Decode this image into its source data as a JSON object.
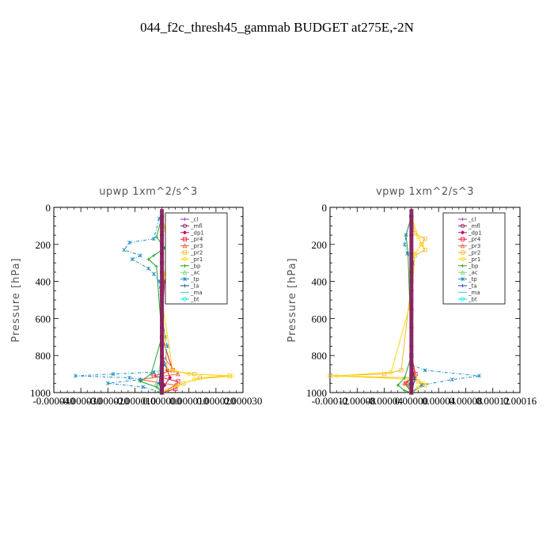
{
  "figure": {
    "title": "044_f2c_thresh45_gammab  BUDGET at275E,-2N"
  },
  "colors": {
    "cl": "#9b2fae",
    "mfl": "#8a1a5b",
    "dp1": "#c0106a",
    "pr4": "#e8123a",
    "pr3": "#ef5d3a",
    "pr2": "#f5b82e",
    "pr1": "#ffd700",
    "bp": "#1fa32b",
    "ac": "#7cd27c",
    "tp": "#1b8fc4",
    "ta": "#1f3f9f",
    "ma": "#4ec4d6",
    "bt": "#00e5e5"
  },
  "chart_data": [
    {
      "type": "line",
      "title": "upwp   1xm^2/s^3",
      "ylabel": "Pressure  [hPa]",
      "xlabel": "",
      "xlim": [
        -4e-05,
        3e-05
      ],
      "ylim": [
        1000,
        0
      ],
      "x_ticks": [
        -4e-05,
        -3e-05,
        -2e-05,
        -1e-05,
        0,
        1e-05,
        2e-05,
        3e-05
      ],
      "x_tick_labels": [
        "-0.000040",
        "-0.000030",
        "-0.000020",
        "-0.000010",
        "0.000000",
        "0.000010",
        "0.000020",
        "0.000030"
      ],
      "y_ticks": [
        0,
        200,
        400,
        600,
        800,
        1000
      ],
      "y_tick_labels": [
        "0",
        "200",
        "400",
        "600",
        "800",
        "1000"
      ],
      "legend": "top-right",
      "series": [
        {
          "name": "_cl",
          "key": "cl",
          "x": [
            0,
            0,
            0,
            0,
            0,
            0,
            0,
            0,
            0,
            0,
            0,
            0
          ],
          "y": [
            50,
            150,
            250,
            350,
            450,
            550,
            650,
            750,
            850,
            900,
            950,
            1000
          ]
        },
        {
          "name": "_mfl",
          "key": "mfl",
          "x": [
            0,
            0,
            0,
            0,
            0,
            0,
            0,
            0,
            0,
            0,
            0,
            0
          ],
          "y": [
            50,
            150,
            250,
            350,
            450,
            550,
            650,
            750,
            850,
            900,
            950,
            1000
          ]
        },
        {
          "name": "_dp1",
          "key": "dp1",
          "x": [
            0,
            0,
            0,
            1e-06,
            0,
            0,
            2e-06,
            3e-06,
            1e-06,
            0
          ],
          "y": [
            50,
            200,
            300,
            400,
            600,
            800,
            880,
            920,
            960,
            1000
          ]
        },
        {
          "name": "_pr4",
          "key": "pr4",
          "x": [
            0,
            0,
            0,
            4e-06,
            -3e-06,
            6e-06,
            5e-06,
            0
          ],
          "y": [
            50,
            300,
            700,
            880,
            910,
            940,
            980,
            1000
          ]
        },
        {
          "name": "_pr3",
          "key": "pr3",
          "x": [
            0,
            0,
            0,
            6e-06,
            -8e-06,
            5e-06,
            0
          ],
          "y": [
            50,
            400,
            800,
            900,
            930,
            960,
            1000
          ]
        },
        {
          "name": "_pr2",
          "key": "pr2",
          "x": [
            0,
            1e-06,
            3e-06,
            2e-06,
            5e-06,
            4e-06,
            3e-06,
            2e-06,
            1e-06,
            0,
            1e-06,
            2e-06,
            1.2e-05,
            2.5e-05,
            1.4e-05,
            8e-06,
            0
          ],
          "y": [
            50,
            120,
            170,
            190,
            230,
            260,
            300,
            330,
            360,
            500,
            700,
            880,
            900,
            910,
            920,
            950,
            1000
          ]
        },
        {
          "name": "_pr1",
          "key": "pr1",
          "x": [
            0,
            2e-06,
            8e-06,
            3e-06,
            6e-06,
            4e-06,
            1e-06,
            0,
            4e-06,
            1e-05,
            2.6e-05,
            1.2e-05,
            6e-06,
            0
          ],
          "y": [
            50,
            150,
            190,
            210,
            250,
            300,
            350,
            500,
            880,
            900,
            910,
            930,
            960,
            1000
          ]
        },
        {
          "name": "_bp",
          "key": "bp",
          "x": [
            0,
            -2e-06,
            1e-06,
            -3e-06,
            -5e-06,
            -2e-06,
            0,
            -4e-06,
            -8e-06,
            -2e-06,
            0
          ],
          "y": [
            50,
            160,
            220,
            260,
            280,
            320,
            700,
            900,
            940,
            970,
            1000
          ]
        },
        {
          "name": "_ac",
          "key": "ac",
          "x": [
            0,
            0,
            0,
            -2e-06,
            0
          ],
          "y": [
            50,
            300,
            800,
            950,
            1000
          ]
        },
        {
          "name": "_tp",
          "key": "tp",
          "x": [
            -1e-06,
            -3e-06,
            -1.2e-05,
            -1.4e-05,
            -8e-06,
            -1.1e-05,
            -5e-06,
            -3e-06,
            -1e-06,
            0,
            2e-06,
            1e-06,
            0,
            -3e-06,
            -1.8e-05,
            -3.2e-05,
            -1.2e-05,
            -8e-06,
            -2e-05,
            -7e-06,
            0
          ],
          "y": [
            60,
            170,
            190,
            230,
            260,
            280,
            330,
            360,
            400,
            600,
            750,
            850,
            880,
            890,
            900,
            910,
            920,
            930,
            950,
            970,
            1000
          ]
        },
        {
          "name": "_ta",
          "key": "ta",
          "x": [
            0,
            0,
            0,
            -1e-06,
            0
          ],
          "y": [
            50,
            300,
            800,
            950,
            1000
          ]
        },
        {
          "name": "_ma",
          "key": "ma",
          "x": [
            0,
            0,
            0,
            0
          ],
          "y": [
            50,
            400,
            800,
            1000
          ]
        },
        {
          "name": "_bt",
          "key": "bt",
          "x": [
            0,
            0,
            0,
            0
          ],
          "y": [
            50,
            400,
            800,
            1000
          ]
        }
      ]
    },
    {
      "type": "line",
      "title": "vpwp   1xm^2/s^3",
      "ylabel": "Pressure  [hPa]",
      "xlabel": "",
      "xlim": [
        -0.00012,
        0.00016
      ],
      "ylim": [
        1000,
        0
      ],
      "x_ticks": [
        -0.00012,
        -8e-05,
        -4e-05,
        0,
        4e-05,
        8e-05,
        0.00012,
        0.00016
      ],
      "x_tick_labels": [
        "-0.00012",
        "-0.00008",
        "-0.00004",
        "0.00000",
        "0.00004",
        "0.00008",
        "0.00012",
        "0.00016"
      ],
      "y_ticks": [
        0,
        200,
        400,
        600,
        800,
        1000
      ],
      "y_tick_labels": [
        "0",
        "200",
        "400",
        "600",
        "800",
        "1000"
      ],
      "legend": "top-right",
      "series": [
        {
          "name": "_cl",
          "key": "cl",
          "x": [
            0,
            0,
            0,
            0,
            0,
            0,
            0,
            0,
            0,
            0,
            0,
            0
          ],
          "y": [
            50,
            150,
            250,
            350,
            450,
            550,
            650,
            750,
            850,
            900,
            950,
            1000
          ]
        },
        {
          "name": "_mfl",
          "key": "mfl",
          "x": [
            0,
            0,
            0,
            0,
            0,
            0,
            0,
            0,
            0,
            0,
            0,
            0
          ],
          "y": [
            50,
            150,
            250,
            350,
            450,
            550,
            650,
            750,
            850,
            900,
            950,
            1000
          ]
        },
        {
          "name": "_dp1",
          "key": "dp1",
          "x": [
            0,
            0,
            0,
            5e-06,
            -5e-06,
            0
          ],
          "y": [
            50,
            400,
            850,
            920,
            960,
            1000
          ]
        },
        {
          "name": "_pr4",
          "key": "pr4",
          "x": [
            0,
            0,
            6e-06,
            -8e-06,
            0
          ],
          "y": [
            50,
            800,
            900,
            950,
            1000
          ]
        },
        {
          "name": "_pr3",
          "key": "pr3",
          "x": [
            0,
            0,
            5e-06,
            -1e-05,
            0
          ],
          "y": [
            50,
            800,
            900,
            950,
            1000
          ]
        },
        {
          "name": "_pr2",
          "key": "pr2",
          "x": [
            0,
            5e-06,
            2e-05,
            1.5e-05,
            2e-05,
            5e-06,
            0,
            -1.5e-05,
            -4e-05,
            -0.00012,
            5e-06,
            1e-05,
            2e-05,
            0
          ],
          "y": [
            50,
            140,
            170,
            200,
            230,
            260,
            400,
            880,
            900,
            910,
            920,
            940,
            960,
            1000
          ]
        },
        {
          "name": "_pr1",
          "key": "pr1",
          "x": [
            0,
            1e-05,
            1.5e-05,
            5e-06,
            0,
            -3e-05,
            -0.00011,
            5e-06,
            1.8e-05,
            1e-05,
            0
          ],
          "y": [
            50,
            160,
            200,
            250,
            500,
            890,
            910,
            930,
            950,
            970,
            1000
          ]
        },
        {
          "name": "_bp",
          "key": "bp",
          "x": [
            0,
            -8e-06,
            -5e-06,
            0,
            -1e-05,
            -2e-05,
            -1e-05,
            0
          ],
          "y": [
            50,
            150,
            250,
            800,
            920,
            960,
            990,
            1000
          ]
        },
        {
          "name": "_ac",
          "key": "ac",
          "x": [
            0,
            0,
            0,
            -5e-06,
            0
          ],
          "y": [
            50,
            400,
            850,
            960,
            1000
          ]
        },
        {
          "name": "_tp",
          "key": "tp",
          "x": [
            0,
            -8e-06,
            -1e-05,
            -6e-06,
            2e-06,
            0,
            0,
            2e-05,
            0.0001,
            6e-05,
            1.5e-05,
            0
          ],
          "y": [
            50,
            150,
            200,
            250,
            300,
            500,
            850,
            880,
            910,
            930,
            960,
            1000
          ]
        },
        {
          "name": "_ta",
          "key": "ta",
          "x": [
            0,
            0,
            0,
            5e-06,
            0
          ],
          "y": [
            50,
            400,
            850,
            930,
            1000
          ]
        },
        {
          "name": "_ma",
          "key": "ma",
          "x": [
            0,
            0,
            0,
            0
          ],
          "y": [
            50,
            400,
            800,
            1000
          ]
        },
        {
          "name": "_bt",
          "key": "bt",
          "x": [
            0,
            0,
            0,
            0
          ],
          "y": [
            50,
            400,
            800,
            1000
          ]
        }
      ]
    }
  ]
}
